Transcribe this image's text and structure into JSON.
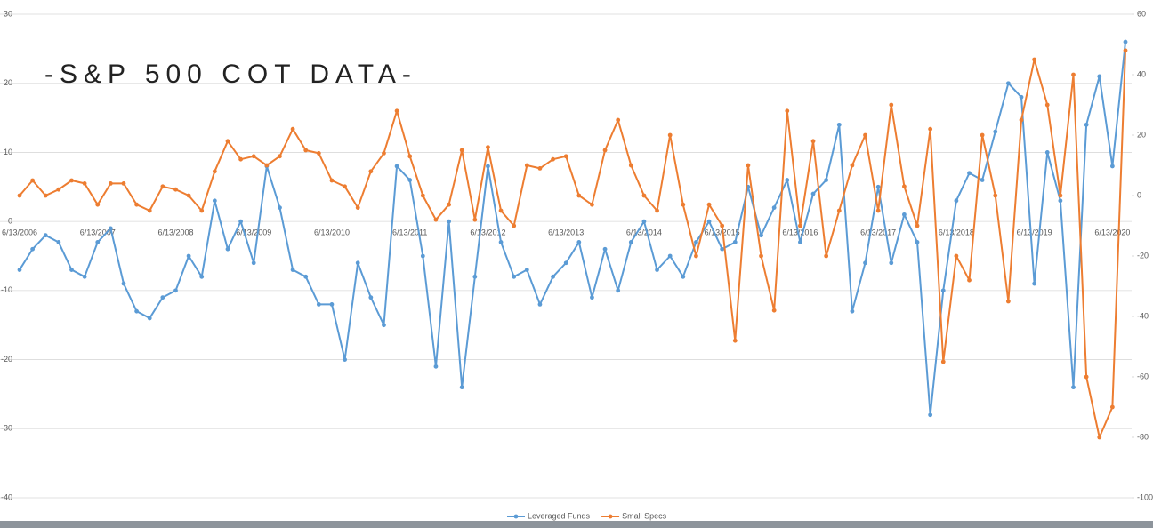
{
  "chart_data": {
    "type": "line",
    "title": "-S&P 500 COT DATA-",
    "x": [
      "6/13/2006",
      "8/13/2006",
      "10/13/2006",
      "12/13/2006",
      "2/13/2007",
      "4/13/2007",
      "6/13/2007",
      "8/13/2007",
      "10/13/2007",
      "12/13/2007",
      "2/13/2008",
      "4/13/2008",
      "6/13/2008",
      "8/13/2008",
      "10/13/2008",
      "12/13/2008",
      "2/13/2009",
      "4/13/2009",
      "6/13/2009",
      "8/13/2009",
      "10/13/2009",
      "12/13/2009",
      "2/13/2010",
      "4/13/2010",
      "6/13/2010",
      "8/13/2010",
      "10/13/2010",
      "12/13/2010",
      "2/13/2011",
      "4/13/2011",
      "6/13/2011",
      "8/13/2011",
      "10/13/2011",
      "12/13/2011",
      "2/13/2012",
      "4/13/2012",
      "6/13/2012",
      "8/13/2012",
      "10/13/2012",
      "12/13/2012",
      "2/13/2013",
      "4/13/2013",
      "6/13/2013",
      "8/13/2013",
      "10/13/2013",
      "12/13/2013",
      "2/13/2014",
      "4/13/2014",
      "6/13/2014",
      "8/13/2014",
      "10/13/2014",
      "12/13/2014",
      "2/13/2015",
      "4/13/2015",
      "6/13/2015",
      "8/13/2015",
      "10/13/2015",
      "12/13/2015",
      "2/13/2016",
      "4/13/2016",
      "6/13/2016",
      "8/13/2016",
      "10/13/2016",
      "12/13/2016",
      "2/13/2017",
      "4/13/2017",
      "6/13/2017",
      "8/13/2017",
      "10/13/2017",
      "12/13/2017",
      "2/13/2018",
      "4/13/2018",
      "6/13/2018",
      "8/13/2018",
      "10/13/2018",
      "12/13/2018",
      "2/13/2019",
      "4/13/2019",
      "6/13/2019",
      "8/13/2019",
      "10/13/2019",
      "12/13/2019",
      "2/13/2020",
      "4/13/2020",
      "6/13/2020",
      "8/13/2020"
    ],
    "series": [
      {
        "name": "Leveraged Funds",
        "color": "#5b9bd5",
        "axis": "y",
        "values": [
          -7,
          -4,
          -2,
          -3,
          -7,
          -8,
          -3,
          -1,
          -9,
          -13,
          -14,
          -11,
          -10,
          -5,
          -8,
          3,
          -4,
          0,
          -6,
          8,
          2,
          -7,
          -8,
          -12,
          -12,
          -20,
          -6,
          -11,
          -15,
          8,
          6,
          -5,
          -21,
          0,
          -24,
          -8,
          8,
          -3,
          -8,
          -7,
          -12,
          -8,
          -6,
          -3,
          -11,
          -4,
          -10,
          -3,
          0,
          -7,
          -5,
          -8,
          -3,
          0,
          -4,
          -3,
          5,
          -2,
          2,
          6,
          -3,
          4,
          6,
          14,
          -13,
          -6,
          5,
          -6,
          1,
          -3,
          -28,
          -10,
          3,
          7,
          6,
          13,
          20,
          18,
          -9,
          10,
          3,
          -24,
          14,
          21,
          8,
          26
        ]
      },
      {
        "name": "Small Specs",
        "color": "#ed7d31",
        "axis": "y2",
        "values": [
          0,
          5,
          0,
          2,
          5,
          4,
          -3,
          4,
          4,
          -3,
          -5,
          3,
          2,
          0,
          -5,
          8,
          18,
          12,
          13,
          10,
          13,
          22,
          15,
          14,
          5,
          3,
          -4,
          8,
          14,
          28,
          13,
          0,
          -8,
          -3,
          15,
          -8,
          16,
          -5,
          -10,
          10,
          9,
          12,
          13,
          0,
          -3,
          15,
          25,
          10,
          0,
          -5,
          20,
          -3,
          -20,
          -3,
          -10,
          -48,
          10,
          -20,
          -38,
          28,
          -10,
          18,
          -20,
          -5,
          10,
          20,
          -5,
          30,
          3,
          -10,
          22,
          -55,
          -20,
          -28,
          20,
          0,
          -35,
          25,
          45,
          30,
          0,
          40,
          -60,
          -80,
          -70,
          48
        ]
      }
    ],
    "xlim": [
      "6/13/2006",
      "8/13/2020"
    ],
    "xticks": [
      "6/13/2006",
      "6/13/2007",
      "6/13/2008",
      "6/13/2009",
      "6/13/2010",
      "6/13/2011",
      "6/13/2012",
      "6/13/2013",
      "6/13/2014",
      "6/13/2015",
      "6/13/2016",
      "6/13/2017",
      "6/13/2018",
      "6/13/2019",
      "6/13/2020"
    ],
    "ylim": [
      -40,
      30
    ],
    "yticks": [
      30,
      20,
      10,
      0,
      -10,
      -20,
      -30,
      -40
    ],
    "y2lim": [
      -100,
      60
    ],
    "y2ticks": [
      60,
      40,
      20,
      0,
      -20,
      -40,
      -60,
      -80,
      -100
    ],
    "grid": true,
    "legend": "bottom"
  }
}
